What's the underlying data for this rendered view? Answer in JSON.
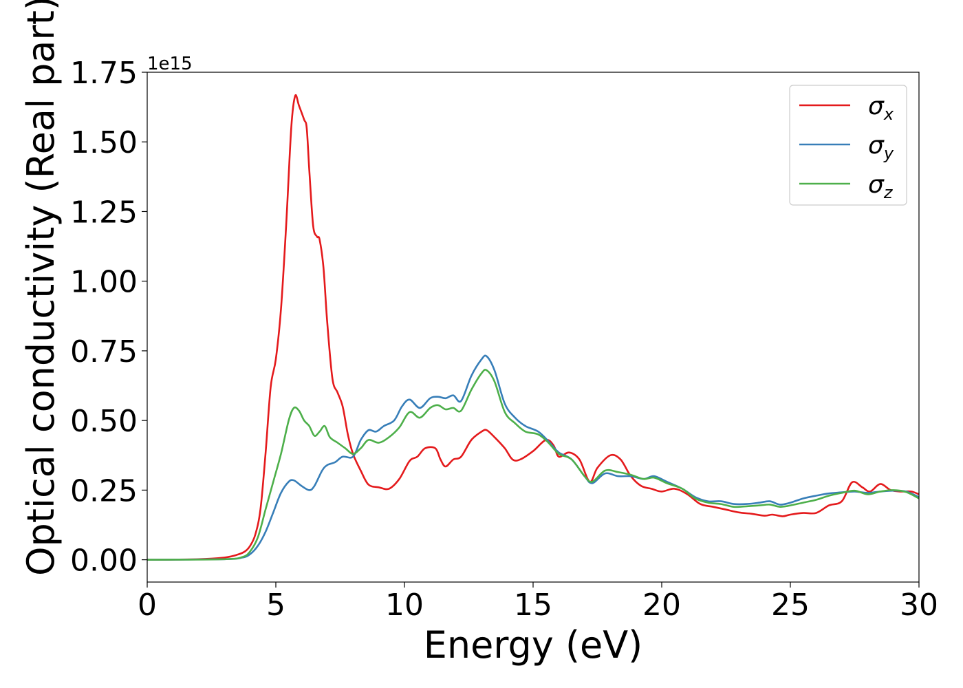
{
  "chart_data": {
    "type": "line",
    "xlabel": "Energy (eV)",
    "ylabel": "Optical conductivity (Real part)",
    "y_offset_label": "1e15",
    "xlim": [
      0,
      30
    ],
    "ylim": [
      -0.08,
      1.75
    ],
    "x_ticks": [
      0,
      5,
      10,
      15,
      20,
      25,
      30
    ],
    "x_tick_labels": [
      "0",
      "5",
      "10",
      "15",
      "20",
      "25",
      "30"
    ],
    "y_ticks": [
      0,
      0.25,
      0.5,
      0.75,
      1.0,
      1.25,
      1.5,
      1.75
    ],
    "y_tick_labels": [
      "0.00",
      "0.25",
      "0.50",
      "0.75",
      "1.00",
      "1.25",
      "1.50",
      "1.75"
    ],
    "grid": false,
    "legend_position": "top-right",
    "series": [
      {
        "name": "σx",
        "legend_symbol": "σ",
        "legend_subscript": "x",
        "color": "#e41a1c",
        "points": [
          [
            0,
            0
          ],
          [
            2,
            0.002
          ],
          [
            3,
            0.008
          ],
          [
            3.5,
            0.018
          ],
          [
            3.8,
            0.03
          ],
          [
            4.0,
            0.05
          ],
          [
            4.2,
            0.09
          ],
          [
            4.4,
            0.18
          ],
          [
            4.6,
            0.38
          ],
          [
            4.8,
            0.62
          ],
          [
            5.0,
            0.72
          ],
          [
            5.2,
            0.9
          ],
          [
            5.4,
            1.2
          ],
          [
            5.6,
            1.55
          ],
          [
            5.75,
            1.665
          ],
          [
            5.9,
            1.63
          ],
          [
            6.1,
            1.58
          ],
          [
            6.2,
            1.55
          ],
          [
            6.3,
            1.4
          ],
          [
            6.45,
            1.2
          ],
          [
            6.6,
            1.16
          ],
          [
            6.7,
            1.15
          ],
          [
            6.85,
            1.05
          ],
          [
            7.0,
            0.85
          ],
          [
            7.2,
            0.65
          ],
          [
            7.4,
            0.6
          ],
          [
            7.6,
            0.55
          ],
          [
            7.8,
            0.45
          ],
          [
            8.0,
            0.38
          ],
          [
            8.3,
            0.32
          ],
          [
            8.6,
            0.27
          ],
          [
            9.0,
            0.26
          ],
          [
            9.4,
            0.255
          ],
          [
            9.8,
            0.29
          ],
          [
            10.2,
            0.355
          ],
          [
            10.5,
            0.37
          ],
          [
            10.8,
            0.4
          ],
          [
            11.2,
            0.4
          ],
          [
            11.4,
            0.36
          ],
          [
            11.6,
            0.335
          ],
          [
            11.9,
            0.36
          ],
          [
            12.2,
            0.37
          ],
          [
            12.6,
            0.43
          ],
          [
            13.0,
            0.46
          ],
          [
            13.2,
            0.465
          ],
          [
            13.5,
            0.44
          ],
          [
            13.9,
            0.4
          ],
          [
            14.2,
            0.36
          ],
          [
            14.5,
            0.36
          ],
          [
            15.0,
            0.39
          ],
          [
            15.5,
            0.43
          ],
          [
            15.8,
            0.41
          ],
          [
            16.0,
            0.37
          ],
          [
            16.4,
            0.385
          ],
          [
            16.8,
            0.36
          ],
          [
            17.2,
            0.28
          ],
          [
            17.5,
            0.33
          ],
          [
            18.0,
            0.375
          ],
          [
            18.4,
            0.36
          ],
          [
            18.8,
            0.3
          ],
          [
            19.2,
            0.265
          ],
          [
            19.6,
            0.255
          ],
          [
            20.0,
            0.245
          ],
          [
            20.5,
            0.255
          ],
          [
            21.0,
            0.235
          ],
          [
            21.5,
            0.2
          ],
          [
            22.0,
            0.19
          ],
          [
            22.5,
            0.18
          ],
          [
            23.0,
            0.17
          ],
          [
            23.5,
            0.165
          ],
          [
            24.0,
            0.158
          ],
          [
            24.3,
            0.162
          ],
          [
            24.7,
            0.156
          ],
          [
            25.0,
            0.162
          ],
          [
            25.5,
            0.168
          ],
          [
            26.0,
            0.168
          ],
          [
            26.5,
            0.195
          ],
          [
            27.0,
            0.21
          ],
          [
            27.4,
            0.278
          ],
          [
            27.8,
            0.26
          ],
          [
            28.1,
            0.245
          ],
          [
            28.5,
            0.272
          ],
          [
            28.9,
            0.25
          ],
          [
            29.3,
            0.245
          ],
          [
            29.7,
            0.245
          ],
          [
            30.0,
            0.235
          ]
        ]
      },
      {
        "name": "σy",
        "legend_symbol": "σ",
        "legend_subscript": "y",
        "color": "#377eb8",
        "points": [
          [
            0,
            0
          ],
          [
            3,
            0.002
          ],
          [
            3.7,
            0.008
          ],
          [
            4.0,
            0.02
          ],
          [
            4.3,
            0.05
          ],
          [
            4.6,
            0.1
          ],
          [
            4.9,
            0.17
          ],
          [
            5.2,
            0.24
          ],
          [
            5.5,
            0.28
          ],
          [
            5.7,
            0.285
          ],
          [
            6.0,
            0.265
          ],
          [
            6.3,
            0.25
          ],
          [
            6.5,
            0.265
          ],
          [
            6.8,
            0.32
          ],
          [
            7.0,
            0.34
          ],
          [
            7.3,
            0.35
          ],
          [
            7.6,
            0.37
          ],
          [
            8.0,
            0.37
          ],
          [
            8.3,
            0.43
          ],
          [
            8.6,
            0.465
          ],
          [
            8.9,
            0.46
          ],
          [
            9.2,
            0.48
          ],
          [
            9.6,
            0.5
          ],
          [
            9.9,
            0.55
          ],
          [
            10.2,
            0.575
          ],
          [
            10.6,
            0.545
          ],
          [
            11.0,
            0.58
          ],
          [
            11.3,
            0.585
          ],
          [
            11.6,
            0.58
          ],
          [
            11.9,
            0.59
          ],
          [
            12.2,
            0.57
          ],
          [
            12.6,
            0.66
          ],
          [
            13.0,
            0.72
          ],
          [
            13.2,
            0.73
          ],
          [
            13.5,
            0.68
          ],
          [
            13.9,
            0.56
          ],
          [
            14.3,
            0.51
          ],
          [
            14.7,
            0.48
          ],
          [
            15.2,
            0.46
          ],
          [
            15.6,
            0.425
          ],
          [
            16.0,
            0.385
          ],
          [
            16.5,
            0.36
          ],
          [
            17.0,
            0.3
          ],
          [
            17.3,
            0.275
          ],
          [
            17.8,
            0.31
          ],
          [
            18.3,
            0.3
          ],
          [
            18.8,
            0.3
          ],
          [
            19.3,
            0.29
          ],
          [
            19.7,
            0.3
          ],
          [
            20.2,
            0.28
          ],
          [
            20.8,
            0.255
          ],
          [
            21.3,
            0.225
          ],
          [
            21.8,
            0.21
          ],
          [
            22.3,
            0.21
          ],
          [
            22.8,
            0.2
          ],
          [
            23.3,
            0.2
          ],
          [
            23.8,
            0.205
          ],
          [
            24.2,
            0.21
          ],
          [
            24.6,
            0.198
          ],
          [
            25.0,
            0.205
          ],
          [
            25.5,
            0.22
          ],
          [
            26.0,
            0.23
          ],
          [
            26.5,
            0.238
          ],
          [
            27.0,
            0.242
          ],
          [
            27.5,
            0.245
          ],
          [
            28.0,
            0.24
          ],
          [
            28.5,
            0.245
          ],
          [
            29.0,
            0.248
          ],
          [
            29.5,
            0.245
          ],
          [
            30.0,
            0.225
          ]
        ]
      },
      {
        "name": "σz",
        "legend_symbol": "σ",
        "legend_subscript": "z",
        "color": "#4daf4a",
        "points": [
          [
            0,
            0
          ],
          [
            3,
            0.002
          ],
          [
            3.7,
            0.01
          ],
          [
            4.0,
            0.03
          ],
          [
            4.3,
            0.08
          ],
          [
            4.6,
            0.18
          ],
          [
            4.9,
            0.28
          ],
          [
            5.2,
            0.38
          ],
          [
            5.5,
            0.5
          ],
          [
            5.7,
            0.545
          ],
          [
            5.9,
            0.535
          ],
          [
            6.1,
            0.5
          ],
          [
            6.3,
            0.48
          ],
          [
            6.5,
            0.445
          ],
          [
            6.7,
            0.46
          ],
          [
            6.9,
            0.48
          ],
          [
            7.1,
            0.44
          ],
          [
            7.4,
            0.42
          ],
          [
            7.7,
            0.4
          ],
          [
            8.0,
            0.38
          ],
          [
            8.3,
            0.4
          ],
          [
            8.6,
            0.43
          ],
          [
            9.0,
            0.42
          ],
          [
            9.4,
            0.44
          ],
          [
            9.8,
            0.475
          ],
          [
            10.2,
            0.53
          ],
          [
            10.6,
            0.51
          ],
          [
            11.0,
            0.545
          ],
          [
            11.3,
            0.555
          ],
          [
            11.6,
            0.54
          ],
          [
            11.9,
            0.545
          ],
          [
            12.2,
            0.535
          ],
          [
            12.6,
            0.61
          ],
          [
            13.0,
            0.67
          ],
          [
            13.2,
            0.68
          ],
          [
            13.5,
            0.64
          ],
          [
            13.9,
            0.53
          ],
          [
            14.3,
            0.49
          ],
          [
            14.7,
            0.46
          ],
          [
            15.2,
            0.45
          ],
          [
            15.6,
            0.42
          ],
          [
            16.0,
            0.38
          ],
          [
            16.5,
            0.36
          ],
          [
            17.0,
            0.3
          ],
          [
            17.3,
            0.28
          ],
          [
            17.8,
            0.32
          ],
          [
            18.3,
            0.315
          ],
          [
            18.8,
            0.305
          ],
          [
            19.3,
            0.29
          ],
          [
            19.7,
            0.295
          ],
          [
            20.2,
            0.275
          ],
          [
            20.8,
            0.255
          ],
          [
            21.3,
            0.22
          ],
          [
            21.8,
            0.205
          ],
          [
            22.3,
            0.2
          ],
          [
            22.8,
            0.19
          ],
          [
            23.3,
            0.192
          ],
          [
            23.8,
            0.195
          ],
          [
            24.2,
            0.198
          ],
          [
            24.6,
            0.19
          ],
          [
            25.0,
            0.195
          ],
          [
            25.5,
            0.205
          ],
          [
            26.0,
            0.215
          ],
          [
            26.5,
            0.23
          ],
          [
            27.0,
            0.24
          ],
          [
            27.5,
            0.248
          ],
          [
            28.0,
            0.235
          ],
          [
            28.5,
            0.245
          ],
          [
            29.0,
            0.25
          ],
          [
            29.5,
            0.243
          ],
          [
            30.0,
            0.22
          ]
        ]
      }
    ]
  }
}
